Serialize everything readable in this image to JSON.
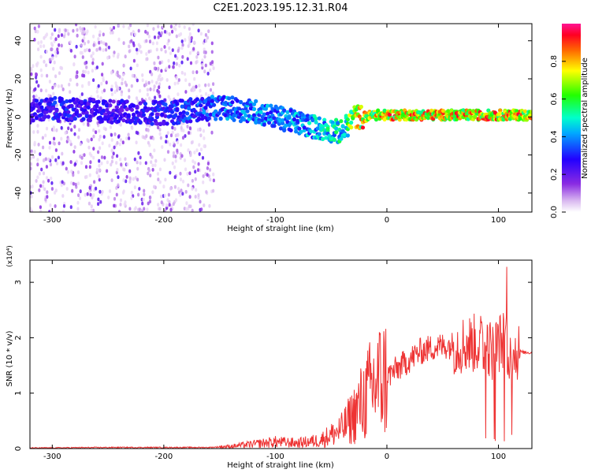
{
  "title": "C2E1.2023.195.12.31.R04",
  "colors": {
    "frame": "#000000",
    "snr_line": "#ee3333",
    "background": "#ffffff"
  },
  "chart_data": [
    {
      "type": "heatmap",
      "name": "spectrogram",
      "xlabel": "Height of straight line (km)",
      "ylabel": "Frequency (Hz)",
      "xlim": [
        -320,
        130
      ],
      "ylim": [
        -50,
        49
      ],
      "xticks": [
        "-300",
        "-200",
        "-100",
        "0",
        "100"
      ],
      "xtick_values": [
        -300,
        -200,
        -100,
        0,
        100
      ],
      "yticks": [
        "40",
        "20",
        "0",
        "-20",
        "-40"
      ],
      "ytick_values": [
        40,
        20,
        0,
        -20,
        -40
      ],
      "ridge": {
        "description_points_x": [
          -320,
          -300,
          -250,
          -200,
          -150,
          -120,
          -100,
          -80,
          -60,
          -40,
          -30,
          -20,
          -10,
          0,
          20,
          50,
          80,
          100,
          120,
          130
        ],
        "freq_hz": [
          3,
          4,
          3,
          2,
          5,
          3,
          0,
          -3,
          -6,
          -8,
          0,
          0,
          1,
          1,
          1,
          1,
          1,
          1,
          1,
          1
        ],
        "amplitude": [
          0.3,
          0.35,
          0.3,
          0.35,
          0.45,
          0.5,
          0.45,
          0.5,
          0.55,
          0.6,
          0.85,
          0.95,
          0.9,
          0.95,
          0.95,
          0.95,
          0.95,
          0.95,
          0.95,
          0.9
        ]
      },
      "colorbar": {
        "label": "Normalized spectral amplitude",
        "range": [
          0,
          1
        ],
        "ticks": [
          "0.0",
          "0.2",
          "0.4",
          "0.6",
          "0.8"
        ],
        "tick_values": [
          0,
          0.2,
          0.4,
          0.6,
          0.8
        ]
      }
    },
    {
      "type": "line",
      "name": "snr",
      "xlabel": "Height of straight line (km)",
      "ylabel": "SNR (10 * v/v)",
      "multiplier_label": "(x10⁴)",
      "xlim": [
        -320,
        130
      ],
      "ylim": [
        0,
        3.4
      ],
      "xticks": [
        "-300",
        "-200",
        "-100",
        "0",
        "100"
      ],
      "xtick_values": [
        -300,
        -200,
        -100,
        0,
        100
      ],
      "yticks": [
        "0",
        "1",
        "2",
        "3"
      ],
      "ytick_values": [
        0,
        1,
        2,
        3
      ],
      "envelope": {
        "x": [
          -320,
          -250,
          -200,
          -160,
          -140,
          -120,
          -100,
          -80,
          -60,
          -40,
          -30,
          -20,
          -10,
          0,
          10,
          20,
          30,
          40,
          50,
          60,
          70,
          80,
          85,
          90,
          95,
          100,
          105,
          110,
          115,
          120,
          130
        ],
        "y": [
          0.01,
          0.02,
          0.02,
          0.02,
          0.04,
          0.08,
          0.12,
          0.1,
          0.15,
          0.35,
          0.6,
          0.9,
          1.2,
          1.3,
          1.45,
          1.6,
          1.75,
          1.82,
          1.85,
          1.87,
          1.88,
          1.9,
          1.9,
          1.85,
          1.75,
          1.9,
          1.95,
          1.8,
          1.75,
          1.74,
          1.73
        ]
      }
    }
  ]
}
